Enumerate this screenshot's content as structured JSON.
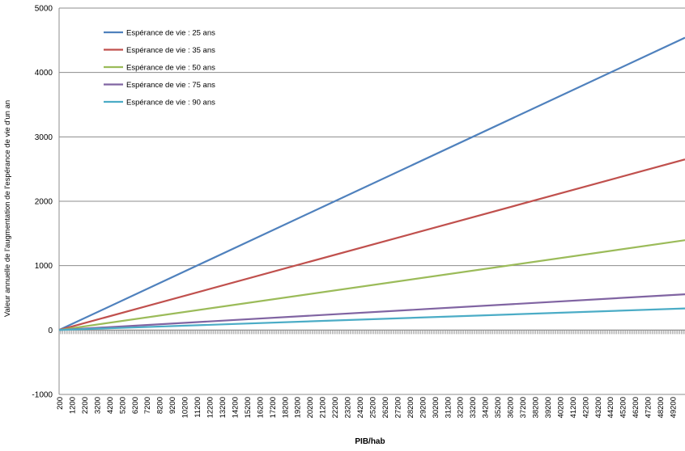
{
  "chart_data": {
    "type": "line",
    "title": "",
    "xlabel": "PIB/hab",
    "ylabel": "Valeur annuelle de l'augmentation de l'espérance de vie d'un an",
    "ylim": [
      -1000,
      5000
    ],
    "yticks": [
      -1000,
      0,
      1000,
      2000,
      3000,
      4000,
      5000
    ],
    "xlim": [
      200,
      50000
    ],
    "x_tick_labels": [
      "200",
      "1200",
      "2200",
      "3200",
      "4200",
      "5200",
      "6200",
      "7200",
      "8200",
      "9200",
      "10200",
      "11200",
      "12200",
      "13200",
      "14200",
      "15200",
      "16200",
      "17200",
      "18200",
      "19200",
      "20200",
      "21200",
      "22200",
      "23200",
      "24200",
      "25200",
      "26200",
      "27200",
      "28200",
      "29200",
      "30200",
      "31200",
      "32200",
      "33200",
      "34200",
      "35200",
      "36200",
      "37200",
      "38200",
      "39200",
      "40200",
      "41200",
      "42200",
      "43200",
      "44200",
      "45200",
      "46200",
      "47200",
      "48200",
      "49200"
    ],
    "grid": "horizontal",
    "legend_position": "top-left",
    "series": [
      {
        "name": "Espérance de vie : 25 ans",
        "color": "#4F81BD",
        "x": [
          200,
          50000
        ],
        "y": [
          0,
          4540
        ]
      },
      {
        "name": "Espérance de vie : 35 ans",
        "color": "#C0504D",
        "x": [
          200,
          50000
        ],
        "y": [
          0,
          2650
        ]
      },
      {
        "name": "Espérance de vie : 50 ans",
        "color": "#9BBB59",
        "x": [
          200,
          50000
        ],
        "y": [
          0,
          1395
        ]
      },
      {
        "name": "Espérance de vie : 75 ans",
        "color": "#8064A2",
        "x": [
          200,
          50000
        ],
        "y": [
          0,
          555
        ]
      },
      {
        "name": "Espérance de vie : 90 ans",
        "color": "#4BACC6",
        "x": [
          200,
          50000
        ],
        "y": [
          0,
          335
        ]
      }
    ]
  }
}
